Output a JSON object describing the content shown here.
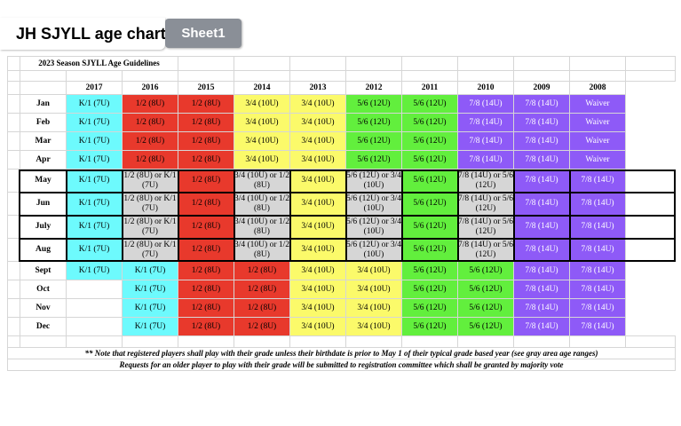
{
  "window": {
    "title": "JH SJYLL age chart",
    "active_sheet": "Sheet1"
  },
  "colors": {
    "cyan": "#6dfafd",
    "red": "#e8392c",
    "yellow": "#fbfa6a",
    "green": "#62ef3d",
    "purple": "#8e5af7",
    "gray": "#d6d6d6"
  },
  "sheet": {
    "guidelines_title": "2023 Season SJYLL Age Guidelines",
    "years": [
      "2017",
      "2016",
      "2015",
      "2014",
      "2013",
      "2012",
      "2011",
      "2010",
      "2009",
      "2008"
    ],
    "rows": [
      {
        "month": "Jan",
        "cells": [
          [
            "K/1 (7U)",
            "cyan"
          ],
          [
            "1/2 (8U)",
            "red"
          ],
          [
            "1/2 (8U)",
            "red"
          ],
          [
            "3/4 (10U)",
            "yellow"
          ],
          [
            "3/4 (10U)",
            "yellow"
          ],
          [
            "5/6 (12U)",
            "green"
          ],
          [
            "5/6 (12U)",
            "green"
          ],
          [
            "7/8 (14U)",
            "purple"
          ],
          [
            "7/8 (14U)",
            "purple"
          ],
          [
            "Waiver",
            "purple"
          ]
        ]
      },
      {
        "month": "Feb",
        "cells": [
          [
            "K/1 (7U)",
            "cyan"
          ],
          [
            "1/2 (8U)",
            "red"
          ],
          [
            "1/2 (8U)",
            "red"
          ],
          [
            "3/4 (10U)",
            "yellow"
          ],
          [
            "3/4 (10U)",
            "yellow"
          ],
          [
            "5/6 (12U)",
            "green"
          ],
          [
            "5/6 (12U)",
            "green"
          ],
          [
            "7/8 (14U)",
            "purple"
          ],
          [
            "7/8 (14U)",
            "purple"
          ],
          [
            "Waiver",
            "purple"
          ]
        ]
      },
      {
        "month": "Mar",
        "cells": [
          [
            "K/1 (7U)",
            "cyan"
          ],
          [
            "1/2 (8U)",
            "red"
          ],
          [
            "1/2 (8U)",
            "red"
          ],
          [
            "3/4 (10U)",
            "yellow"
          ],
          [
            "3/4 (10U)",
            "yellow"
          ],
          [
            "5/6 (12U)",
            "green"
          ],
          [
            "5/6 (12U)",
            "green"
          ],
          [
            "7/8 (14U)",
            "purple"
          ],
          [
            "7/8 (14U)",
            "purple"
          ],
          [
            "Waiver",
            "purple"
          ]
        ]
      },
      {
        "month": "Apr",
        "cells": [
          [
            "K/1 (7U)",
            "cyan"
          ],
          [
            "1/2 (8U)",
            "red"
          ],
          [
            "1/2 (8U)",
            "red"
          ],
          [
            "3/4 (10U)",
            "yellow"
          ],
          [
            "3/4 (10U)",
            "yellow"
          ],
          [
            "5/6 (12U)",
            "green"
          ],
          [
            "5/6 (12U)",
            "green"
          ],
          [
            "7/8 (14U)",
            "purple"
          ],
          [
            "7/8 (14U)",
            "purple"
          ],
          [
            "Waiver",
            "purple"
          ]
        ]
      },
      {
        "month": "May",
        "cells": [
          [
            "K/1 (7U)",
            "cyan"
          ],
          [
            "1/2 (8U) or K/1 (7U)",
            "gray"
          ],
          [
            "1/2 (8U)",
            "red"
          ],
          [
            "3/4 (10U) or 1/2 (8U)",
            "gray"
          ],
          [
            "3/4 (10U)",
            "yellow"
          ],
          [
            "5/6 (12U) or 3/4 (10U)",
            "gray"
          ],
          [
            "5/6 (12U)",
            "green"
          ],
          [
            "7/8 (14U) or 5/6 (12U)",
            "gray"
          ],
          [
            "7/8 (14U)",
            "purple"
          ],
          [
            "7/8 (14U)",
            "purple"
          ]
        ]
      },
      {
        "month": "Jun",
        "cells": [
          [
            "K/1 (7U)",
            "cyan"
          ],
          [
            "1/2 (8U) or K/1 (7U)",
            "gray"
          ],
          [
            "1/2 (8U)",
            "red"
          ],
          [
            "3/4 (10U) or 1/2 (8U)",
            "gray"
          ],
          [
            "3/4 (10U)",
            "yellow"
          ],
          [
            "5/6 (12U) or 3/4 (10U)",
            "gray"
          ],
          [
            "5/6 (12U)",
            "green"
          ],
          [
            "7/8 (14U) or 5/6 (12U)",
            "gray"
          ],
          [
            "7/8 (14U)",
            "purple"
          ],
          [
            "7/8 (14U)",
            "purple"
          ]
        ]
      },
      {
        "month": "July",
        "cells": [
          [
            "K/1 (7U)",
            "cyan"
          ],
          [
            "1/2 (8U) or K/1 (7U)",
            "gray"
          ],
          [
            "1/2 (8U)",
            "red"
          ],
          [
            "3/4 (10U) or 1/2 (8U)",
            "gray"
          ],
          [
            "3/4 (10U)",
            "yellow"
          ],
          [
            "5/6 (12U) or 3/4 (10U)",
            "gray"
          ],
          [
            "5/6 (12U)",
            "green"
          ],
          [
            "7/8 (14U) or 5/6 (12U)",
            "gray"
          ],
          [
            "7/8 (14U)",
            "purple"
          ],
          [
            "7/8 (14U)",
            "purple"
          ]
        ]
      },
      {
        "month": "Aug",
        "cells": [
          [
            "K/1 (7U)",
            "cyan"
          ],
          [
            "1/2 (8U) or K/1 (7U)",
            "gray"
          ],
          [
            "1/2 (8U)",
            "red"
          ],
          [
            "3/4 (10U) or 1/2 (8U)",
            "gray"
          ],
          [
            "3/4 (10U)",
            "yellow"
          ],
          [
            "5/6 (12U) or 3/4 (10U)",
            "gray"
          ],
          [
            "5/6 (12U)",
            "green"
          ],
          [
            "7/8 (14U) or 5/6 (12U)",
            "gray"
          ],
          [
            "7/8 (14U)",
            "purple"
          ],
          [
            "7/8 (14U)",
            "purple"
          ]
        ]
      },
      {
        "month": "Sept",
        "cells": [
          [
            "K/1 (7U)",
            "cyan"
          ],
          [
            "K/1 (7U)",
            "cyan"
          ],
          [
            "1/2 (8U)",
            "red"
          ],
          [
            "1/2 (8U)",
            "red"
          ],
          [
            "3/4 (10U)",
            "yellow"
          ],
          [
            "3/4 (10U)",
            "yellow"
          ],
          [
            "5/6 (12U)",
            "green"
          ],
          [
            "5/6 (12U)",
            "green"
          ],
          [
            "7/8 (14U)",
            "purple"
          ],
          [
            "7/8 (14U)",
            "purple"
          ]
        ]
      },
      {
        "month": "Oct",
        "cells": [
          [
            "",
            "white"
          ],
          [
            "K/1 (7U)",
            "cyan"
          ],
          [
            "1/2 (8U)",
            "red"
          ],
          [
            "1/2 (8U)",
            "red"
          ],
          [
            "3/4 (10U)",
            "yellow"
          ],
          [
            "3/4 (10U)",
            "yellow"
          ],
          [
            "5/6 (12U)",
            "green"
          ],
          [
            "5/6 (12U)",
            "green"
          ],
          [
            "7/8 (14U)",
            "purple"
          ],
          [
            "7/8 (14U)",
            "purple"
          ]
        ]
      },
      {
        "month": "Nov",
        "cells": [
          [
            "",
            "white"
          ],
          [
            "K/1 (7U)",
            "cyan"
          ],
          [
            "1/2 (8U)",
            "red"
          ],
          [
            "1/2 (8U)",
            "red"
          ],
          [
            "3/4 (10U)",
            "yellow"
          ],
          [
            "3/4 (10U)",
            "yellow"
          ],
          [
            "5/6 (12U)",
            "green"
          ],
          [
            "5/6 (12U)",
            "green"
          ],
          [
            "7/8 (14U)",
            "purple"
          ],
          [
            "7/8 (14U)",
            "purple"
          ]
        ]
      },
      {
        "month": "Dec",
        "cells": [
          [
            "",
            "white"
          ],
          [
            "K/1 (7U)",
            "cyan"
          ],
          [
            "1/2 (8U)",
            "red"
          ],
          [
            "1/2 (8U)",
            "red"
          ],
          [
            "3/4 (10U)",
            "yellow"
          ],
          [
            "3/4 (10U)",
            "yellow"
          ],
          [
            "5/6 (12U)",
            "green"
          ],
          [
            "5/6 (12U)",
            "green"
          ],
          [
            "7/8 (14U)",
            "purple"
          ],
          [
            "7/8 (14U)",
            "purple"
          ]
        ]
      }
    ],
    "notes": [
      "** Note that registered players shall play with their grade unless their birthdate is prior to May 1 of their typical grade based year (see gray area age ranges)",
      "Requests for an older player to play with their grade will be submitted to registration committee which shall be granted by majority vote"
    ]
  }
}
